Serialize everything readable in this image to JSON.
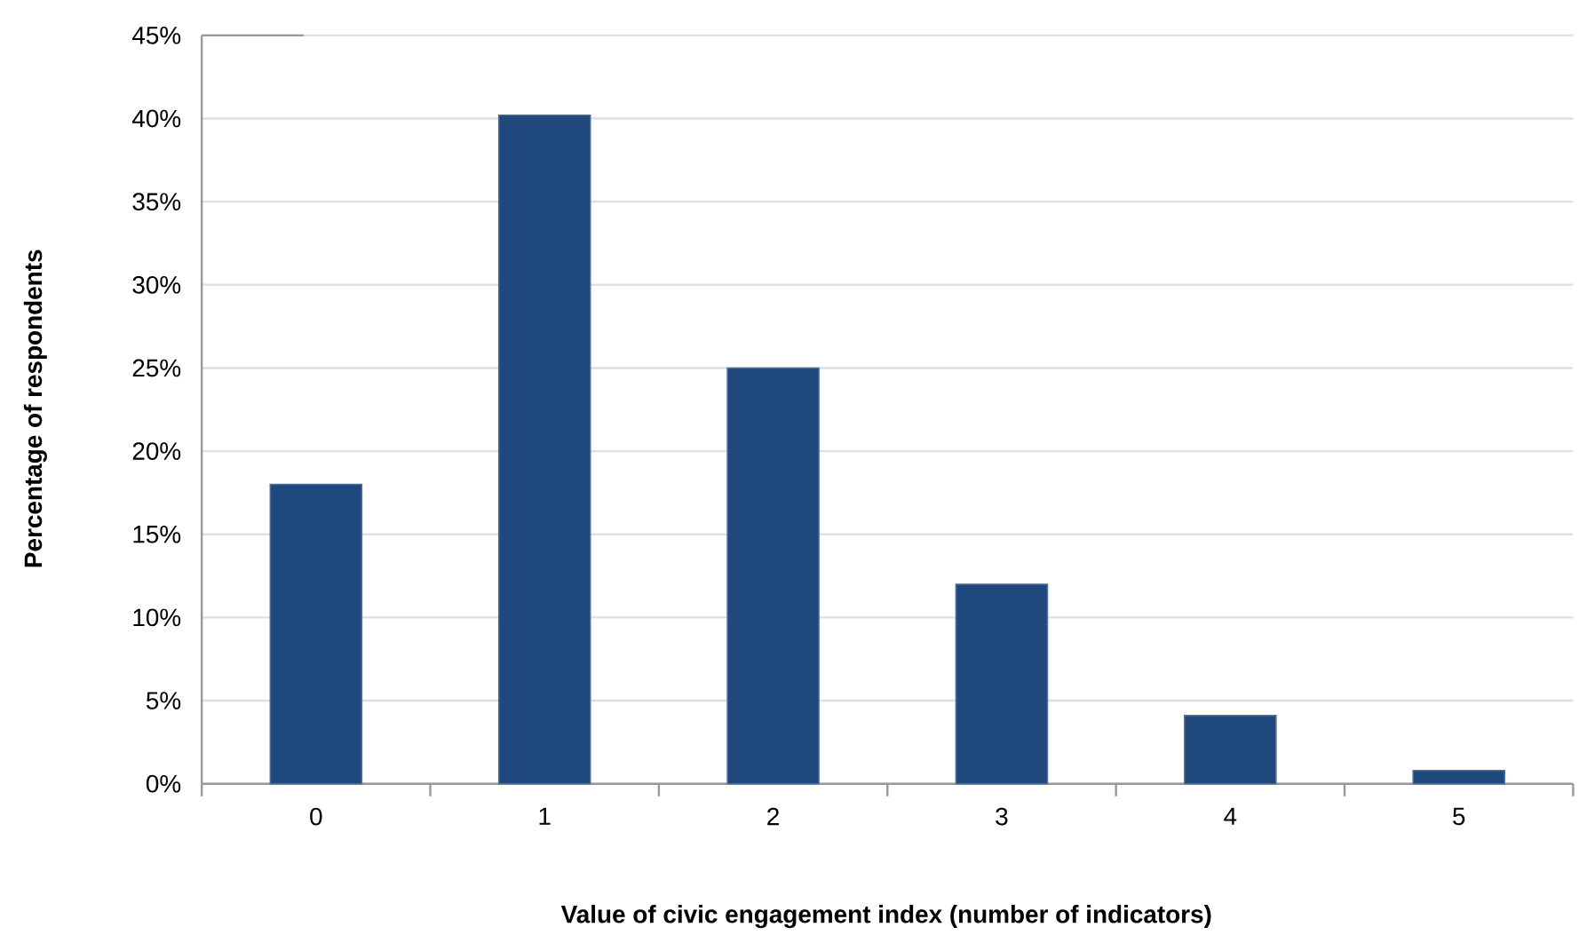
{
  "chart_data": {
    "type": "bar",
    "xlabel": "Value of civic engagement index (number of indicators)",
    "ylabel": "Percentage of respondents",
    "categories": [
      "0",
      "1",
      "2",
      "3",
      "4",
      "5"
    ],
    "values": [
      18.0,
      40.2,
      25.0,
      12.0,
      4.1,
      0.8
    ],
    "color": "#1f497d",
    "ylim": [
      0,
      45
    ],
    "yticks": [
      {
        "value": 0,
        "label": "0%"
      },
      {
        "value": 5,
        "label": "5%"
      },
      {
        "value": 10,
        "label": "10%"
      },
      {
        "value": 15,
        "label": "15%"
      },
      {
        "value": 20,
        "label": "20%"
      },
      {
        "value": 25,
        "label": "25%"
      },
      {
        "value": 30,
        "label": "30%"
      },
      {
        "value": 35,
        "label": "35%"
      },
      {
        "value": 40,
        "label": "40%"
      },
      {
        "value": 45,
        "label": "45%"
      }
    ],
    "grid": "y"
  }
}
